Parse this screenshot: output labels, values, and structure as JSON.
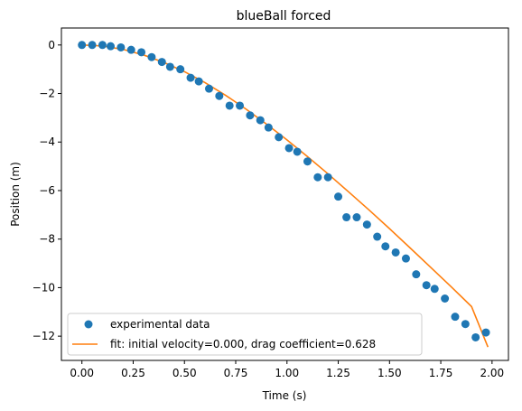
{
  "chart_data": {
    "type": "scatter",
    "title": "blueBall forced",
    "xlabel": "Time (s)",
    "ylabel": "Position (m)",
    "xlim": [
      -0.1,
      2.08
    ],
    "ylim": [
      -13.0,
      0.7
    ],
    "xticks": [
      0.0,
      0.25,
      0.5,
      0.75,
      1.0,
      1.25,
      1.5,
      1.75,
      2.0
    ],
    "xtick_labels": [
      "0.00",
      "0.25",
      "0.50",
      "0.75",
      "1.00",
      "1.25",
      "1.50",
      "1.75",
      "2.00"
    ],
    "yticks": [
      0,
      -2,
      -4,
      -6,
      -8,
      -10,
      -12
    ],
    "ytick_labels": [
      "0",
      "−2",
      "−4",
      "−6",
      "−8",
      "−10",
      "−12"
    ],
    "grid": false,
    "legend_position": "lower-left",
    "series": [
      {
        "name": "experimental data",
        "kind": "scatter",
        "color": "#1f77b4",
        "x": [
          0.0,
          0.05,
          0.1,
          0.14,
          0.19,
          0.24,
          0.29,
          0.34,
          0.39,
          0.43,
          0.48,
          0.53,
          0.57,
          0.62,
          0.67,
          0.72,
          0.77,
          0.82,
          0.87,
          0.91,
          0.96,
          1.01,
          1.05,
          1.1,
          1.15,
          1.2,
          1.25,
          1.29,
          1.34,
          1.39,
          1.44,
          1.48,
          1.53,
          1.58,
          1.63,
          1.68,
          1.72,
          1.77,
          1.82,
          1.87,
          1.92,
          1.97
        ],
        "y": [
          0.0,
          0.0,
          0.0,
          -0.05,
          -0.1,
          -0.2,
          -0.3,
          -0.5,
          -0.7,
          -0.9,
          -1.0,
          -1.35,
          -1.5,
          -1.8,
          -2.1,
          -2.5,
          -2.5,
          -2.9,
          -3.1,
          -3.4,
          -3.8,
          -4.25,
          -4.4,
          -4.8,
          -5.45,
          -5.45,
          -6.25,
          -7.1,
          -7.1,
          -7.4,
          -7.9,
          -8.3,
          -8.55,
          -8.8,
          -9.45,
          -9.9,
          -10.05,
          -10.45,
          -11.2,
          -11.5,
          -12.05,
          -11.85
        ]
      },
      {
        "name": "fit: initial velocity=0.000, drag coefficient=0.628",
        "kind": "line",
        "color": "#ff7f0e",
        "x": [
          0.0,
          0.1,
          0.2,
          0.3,
          0.4,
          0.5,
          0.6,
          0.7,
          0.8,
          0.9,
          1.0,
          1.1,
          1.2,
          1.3,
          1.4,
          1.5,
          1.6,
          1.7,
          1.8,
          1.9,
          1.98
        ],
        "y": [
          0.0,
          -0.04,
          -0.18,
          -0.41,
          -0.72,
          -1.1,
          -1.55,
          -2.07,
          -2.64,
          -3.26,
          -3.91,
          -4.6,
          -5.31,
          -6.05,
          -6.8,
          -7.57,
          -8.36,
          -9.16,
          -9.96,
          -10.78,
          -12.45
        ]
      }
    ]
  }
}
